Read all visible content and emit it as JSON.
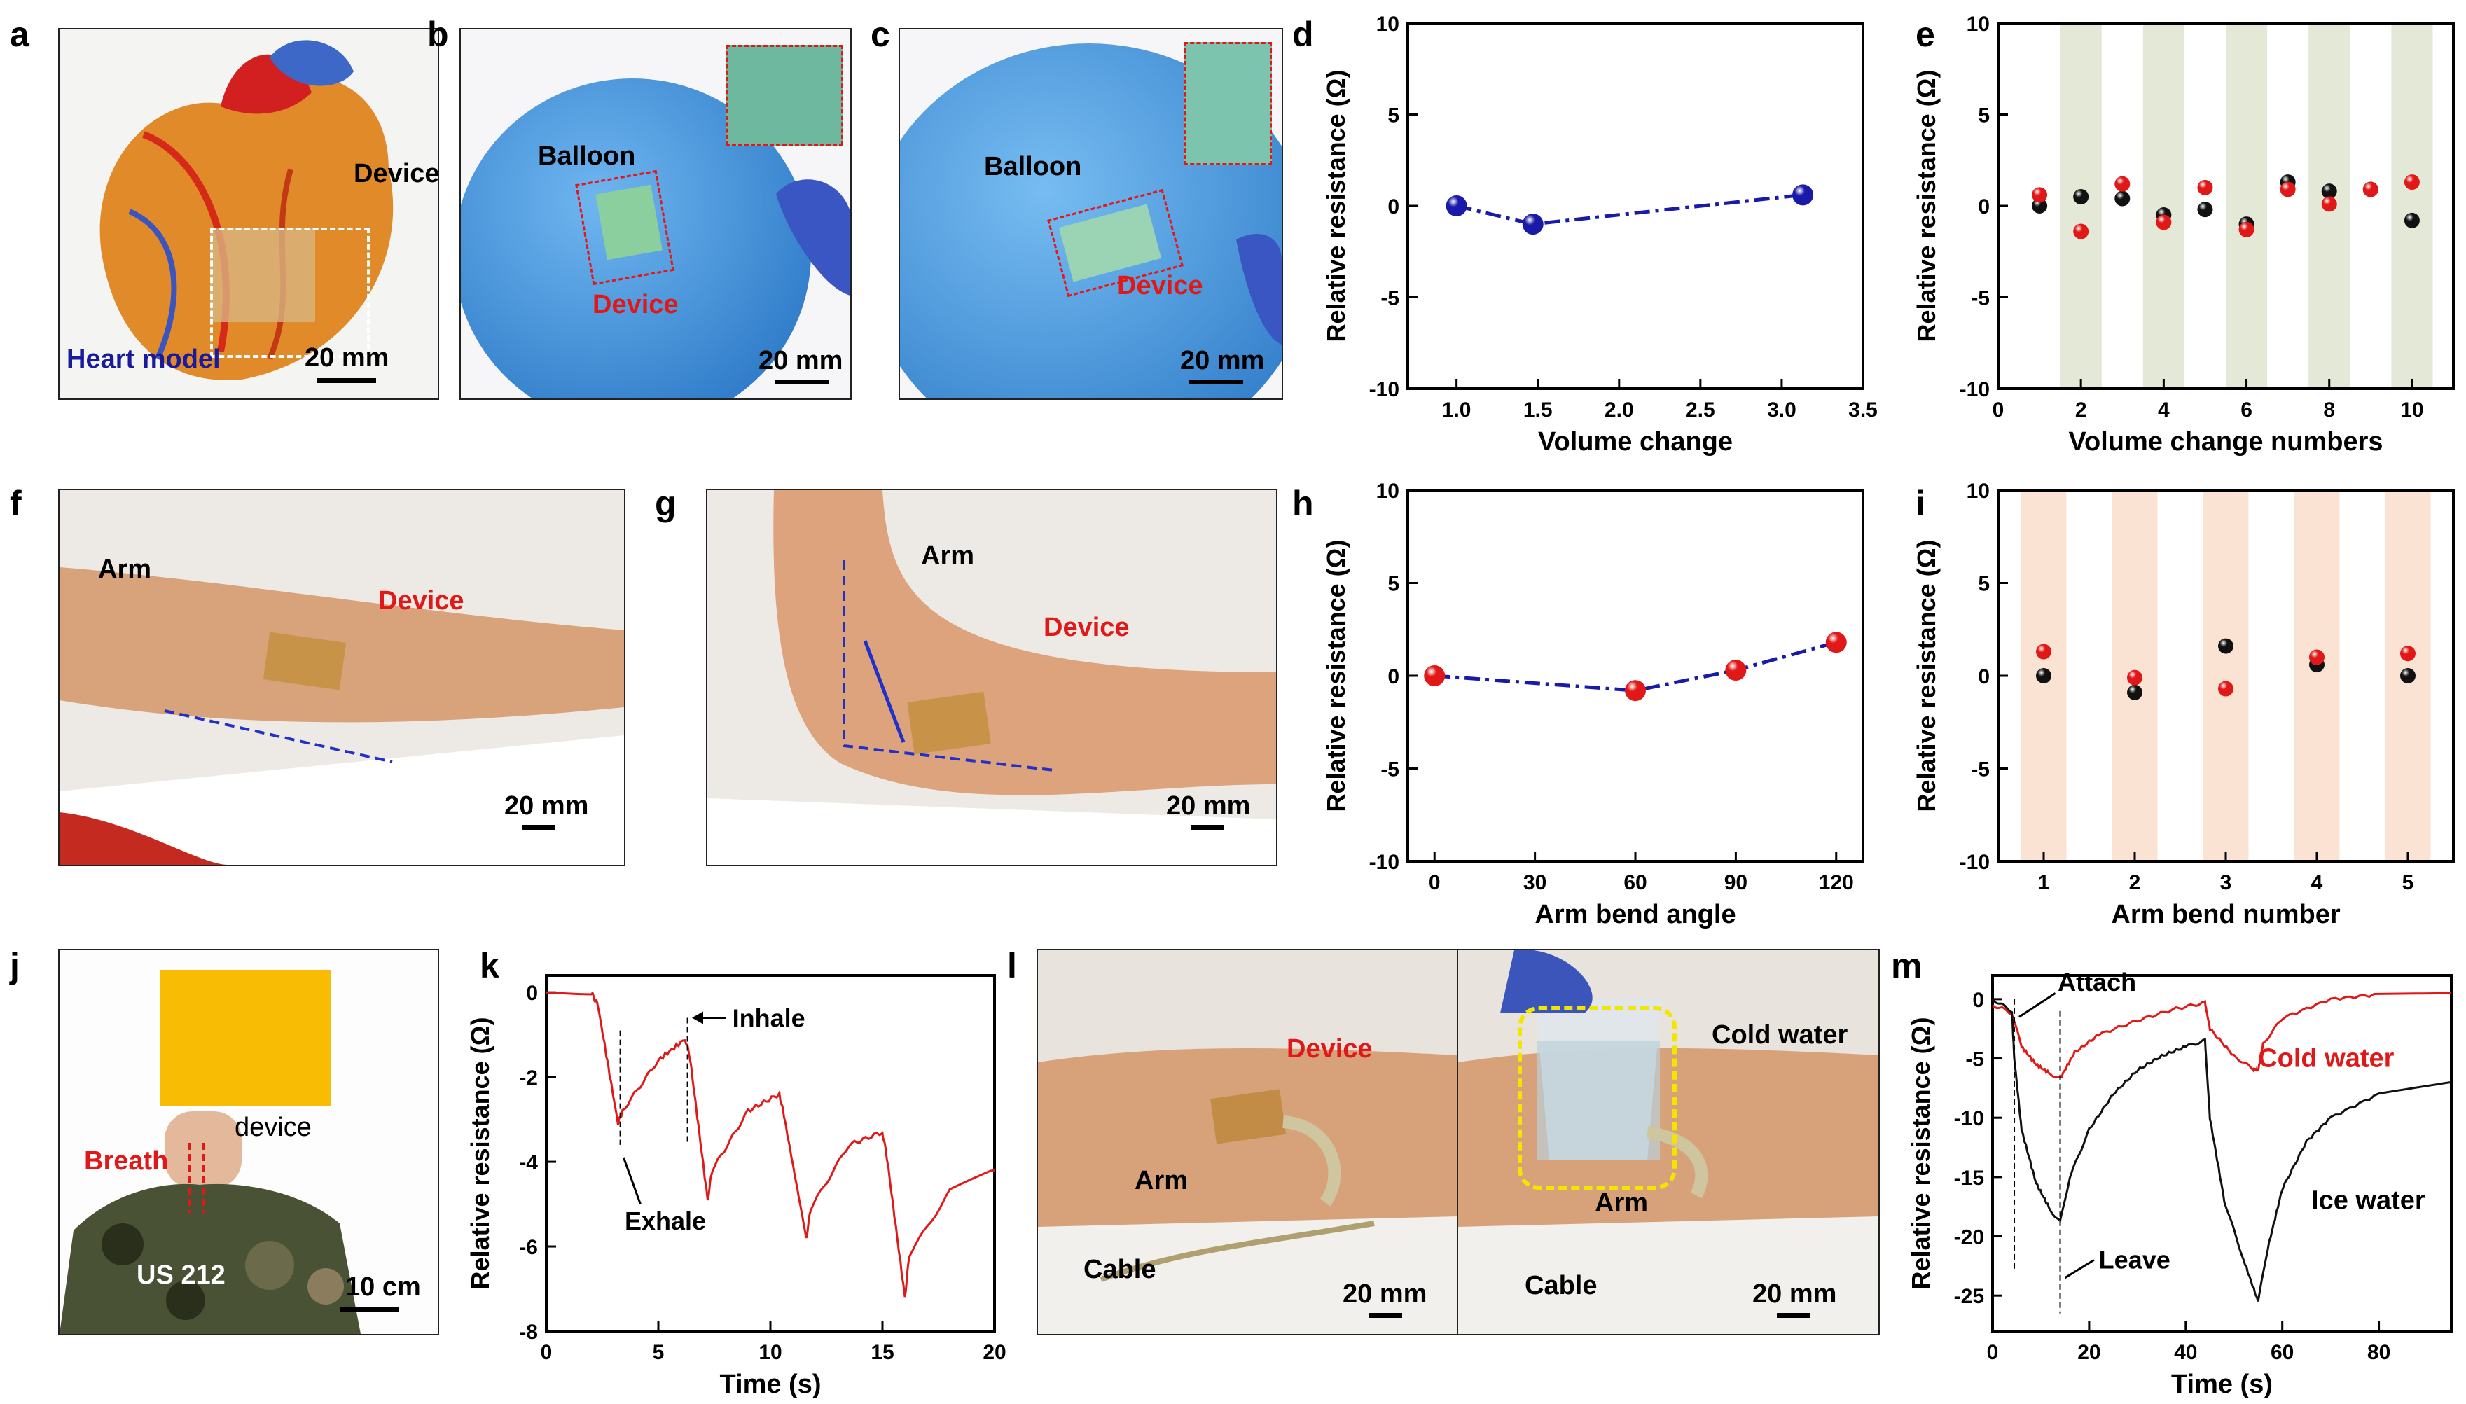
{
  "panel_letters": {
    "a": "a",
    "b": "b",
    "c": "c",
    "d": "d",
    "e": "e",
    "f": "f",
    "g": "g",
    "h": "h",
    "i": "i",
    "j": "j",
    "k": "k",
    "l": "l",
    "m": "m"
  },
  "photos": {
    "a": {
      "device": "Device",
      "heart": "Heart model",
      "scale": "20 mm"
    },
    "b": {
      "balloon": "Balloon",
      "device": "Device",
      "scale": "20 mm"
    },
    "c": {
      "balloon": "Balloon",
      "device": "Device",
      "scale": "20 mm"
    },
    "f": {
      "arm": "Arm",
      "device": "Device",
      "scale": "20 mm"
    },
    "g": {
      "arm": "Arm",
      "device": "Device",
      "scale": "20 mm"
    },
    "j": {
      "device": "device",
      "breath": "Breath",
      "shirt": "US 212",
      "scale": "10 cm"
    },
    "l_left": {
      "device": "Device",
      "arm": "Arm",
      "cable": "Cable",
      "scale": "20 mm"
    },
    "l_right": {
      "cold": "Cold water",
      "arm": "Arm",
      "cable": "Cable",
      "scale": "20 mm"
    }
  },
  "colors": {
    "red": "#e01818",
    "blue": "#1a1aa8",
    "black": "#111111",
    "green_band": "#e3e9d6",
    "orange_band": "#fbe3d4"
  },
  "chart_data": [
    {
      "id": "d",
      "type": "line",
      "xlabel": "Volume change",
      "ylabel": "Relative resistance (Ω)",
      "xlim": [
        0.7,
        3.5
      ],
      "ylim": [
        -10,
        10
      ],
      "xticks": [
        1.0,
        1.5,
        2.0,
        2.5,
        3.0,
        3.5
      ],
      "xticklabels": [
        "1.0",
        "1.5",
        "2.0",
        "2.5",
        "3.0",
        "3.5"
      ],
      "yticks": [
        -10,
        -5,
        0,
        5,
        10
      ],
      "yticklabels": [
        "-10",
        "-5",
        "0",
        "5",
        "10"
      ],
      "series": [
        {
          "name": "blue",
          "color": "#1a1aa8",
          "x": [
            1.0,
            1.47,
            3.13
          ],
          "y": [
            0.0,
            -1.0,
            0.6
          ]
        }
      ]
    },
    {
      "id": "e",
      "type": "scatter",
      "xlabel": "Volume change numbers",
      "ylabel": "Relative resistance (Ω)",
      "xlim": [
        0,
        11
      ],
      "ylim": [
        -10,
        10
      ],
      "xticks": [
        0,
        2,
        4,
        6,
        8,
        10
      ],
      "xticklabels": [
        "0",
        "2",
        "4",
        "6",
        "8",
        "10"
      ],
      "yticks": [
        -10,
        -5,
        0,
        5,
        10
      ],
      "yticklabels": [
        "-10",
        "-5",
        "0",
        "5",
        "10"
      ],
      "bands": [
        [
          1.5,
          2.5
        ],
        [
          3.5,
          4.5
        ],
        [
          5.5,
          6.5
        ],
        [
          7.5,
          8.5
        ],
        [
          9.5,
          10.5
        ]
      ],
      "band_color": "#e3e9d6",
      "series": [
        {
          "name": "black",
          "color": "#111111",
          "x": [
            1,
            2,
            3,
            4,
            5,
            6,
            7,
            8,
            9,
            10
          ],
          "y": [
            0.0,
            0.5,
            0.4,
            -0.5,
            -0.2,
            -1.0,
            1.3,
            0.8,
            0.9,
            -0.8
          ]
        },
        {
          "name": "red",
          "color": "#e01818",
          "x": [
            1,
            2,
            3,
            4,
            5,
            6,
            7,
            8,
            9,
            10
          ],
          "y": [
            0.6,
            -1.4,
            1.2,
            -0.9,
            1.0,
            -1.3,
            0.9,
            0.1,
            0.9,
            1.3
          ]
        }
      ]
    },
    {
      "id": "h",
      "type": "line",
      "xlabel": "Arm bend angle",
      "ylabel": "Relative resistance (Ω)",
      "xlim": [
        -8,
        128
      ],
      "ylim": [
        -10,
        10
      ],
      "xticks": [
        0,
        30,
        60,
        90,
        120
      ],
      "xticklabels": [
        "0",
        "30",
        "60",
        "90",
        "120"
      ],
      "yticks": [
        -10,
        -5,
        0,
        5,
        10
      ],
      "yticklabels": [
        "-10",
        "-5",
        "0",
        "5",
        "10"
      ],
      "series": [
        {
          "name": "red",
          "color": "#e01818",
          "x": [
            0,
            60,
            90,
            120
          ],
          "y": [
            0.0,
            -0.8,
            0.3,
            1.8
          ]
        }
      ]
    },
    {
      "id": "i",
      "type": "scatter",
      "xlabel": "Arm bend number",
      "ylabel": "Relative resistance (Ω)",
      "xlim": [
        0.5,
        5.5
      ],
      "ylim": [
        -10,
        10
      ],
      "xticks": [
        1,
        2,
        3,
        4,
        5
      ],
      "xticklabels": [
        "1",
        "2",
        "3",
        "4",
        "5"
      ],
      "yticks": [
        -10,
        -5,
        0,
        5,
        10
      ],
      "yticklabels": [
        "-10",
        "-5",
        "0",
        "5",
        "10"
      ],
      "bands": [
        [
          0.75,
          1.25
        ],
        [
          1.75,
          2.25
        ],
        [
          2.75,
          3.25
        ],
        [
          3.75,
          4.25
        ],
        [
          4.75,
          5.25
        ]
      ],
      "band_color": "#fbe3d4",
      "series": [
        {
          "name": "black",
          "color": "#111111",
          "x": [
            1,
            2,
            3,
            4,
            5
          ],
          "y": [
            0.0,
            -0.9,
            1.6,
            0.6,
            0.0
          ]
        },
        {
          "name": "red",
          "color": "#e01818",
          "x": [
            1,
            2,
            3,
            4,
            5
          ],
          "y": [
            1.3,
            -0.1,
            -0.7,
            1.0,
            1.2
          ]
        }
      ]
    },
    {
      "id": "k",
      "type": "line",
      "xlabel": "Time (s)",
      "ylabel": "Relative resistance (Ω)",
      "xlim": [
        0,
        20
      ],
      "ylim": [
        -8,
        0.4
      ],
      "xticks": [
        0,
        5,
        10,
        15,
        20
      ],
      "xticklabels": [
        "0",
        "5",
        "10",
        "15",
        "20"
      ],
      "yticks": [
        -8,
        -6,
        -4,
        -2,
        0
      ],
      "yticklabels": [
        "-8",
        "-6",
        "-4",
        "-2",
        "0"
      ],
      "annotations": {
        "inhale": "Inhale",
        "exhale": "Exhale"
      },
      "series": [
        {
          "name": "breath",
          "color": "#e01818",
          "x": [
            0,
            2.0,
            2.3,
            3.2,
            3.4,
            5.0,
            6.2,
            6.4,
            7.2,
            7.4,
            9.0,
            10.4,
            10.6,
            11.6,
            11.8,
            13.5,
            15.0,
            15.2,
            16.0,
            16.2,
            18.0,
            20.0
          ],
          "y": [
            0.0,
            0.0,
            -0.3,
            -3.1,
            -2.8,
            -1.6,
            -1.1,
            -1.5,
            -4.9,
            -4.2,
            -2.8,
            -2.4,
            -2.9,
            -5.8,
            -5.1,
            -3.6,
            -3.3,
            -3.9,
            -7.2,
            -6.2,
            -4.7,
            -4.2
          ]
        }
      ]
    },
    {
      "id": "m",
      "type": "line",
      "xlabel": "Time (s)",
      "ylabel": "Relative resistance (Ω)",
      "xlim": [
        0,
        95
      ],
      "ylim": [
        -28,
        2
      ],
      "xticks": [
        0,
        20,
        40,
        60,
        80
      ],
      "xticklabels": [
        "0",
        "20",
        "40",
        "60",
        "80"
      ],
      "yticks": [
        -25,
        -20,
        -15,
        -10,
        -5,
        0
      ],
      "yticklabels": [
        "-25",
        "-20",
        "-15",
        "-10",
        "-5",
        "0"
      ],
      "annotations": {
        "attach": "Attach",
        "leave": "Leave",
        "cold": "Cold water",
        "ice": "Ice water"
      },
      "series": [
        {
          "name": "Cold water",
          "color": "#e01818",
          "x": [
            0,
            2,
            4,
            6,
            9,
            12,
            14,
            17,
            22,
            30,
            38,
            44,
            45,
            50,
            54,
            55,
            56,
            60,
            70,
            80,
            95
          ],
          "y": [
            -0.5,
            -0.8,
            -1.2,
            -4.0,
            -5.5,
            -6.3,
            -6.7,
            -4.5,
            -3.0,
            -1.8,
            -0.8,
            -0.3,
            -2.5,
            -4.8,
            -5.9,
            -6.0,
            -3.8,
            -1.6,
            0.0,
            0.4,
            0.5
          ]
        },
        {
          "name": "Ice water",
          "color": "#111111",
          "x": [
            0,
            2,
            4,
            4.5,
            6,
            9,
            12,
            14,
            16,
            20,
            25,
            30,
            35,
            40,
            44,
            45,
            48,
            52,
            55,
            57,
            60,
            65,
            70,
            80,
            95
          ],
          "y": [
            0.0,
            -0.5,
            -1.0,
            -5,
            -11,
            -15.5,
            -17.8,
            -18.8,
            -15,
            -11,
            -8,
            -6,
            -4.8,
            -4.0,
            -3.5,
            -10,
            -17,
            -22,
            -25.5,
            -21,
            -16,
            -12,
            -10,
            -8,
            -7
          ]
        }
      ]
    }
  ]
}
